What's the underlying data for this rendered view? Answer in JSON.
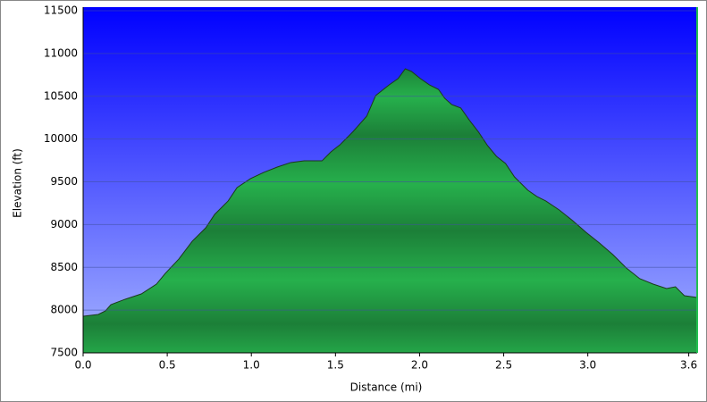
{
  "chart_data": {
    "type": "area",
    "x_label": "Distance    (mi)",
    "y_label": "Elevation (ft)",
    "x": [
      0,
      0.09,
      0.133,
      0.165,
      0.25,
      0.346,
      0.436,
      0.489,
      0.569,
      0.649,
      0.729,
      0.782,
      0.862,
      0.915,
      0.995,
      1.074,
      1.154,
      1.234,
      1.314,
      1.42,
      1.473,
      1.527,
      1.606,
      1.686,
      1.739,
      1.819,
      1.872,
      1.915,
      1.952,
      2.005,
      2.059,
      2.112,
      2.149,
      2.191,
      2.245,
      2.298,
      2.351,
      2.404,
      2.457,
      2.511,
      2.564,
      2.644,
      2.697,
      2.75,
      2.83,
      2.91,
      2.989,
      3.069,
      3.149,
      3.229,
      3.309,
      3.388,
      3.468,
      3.521,
      3.574,
      3.65
    ],
    "values": [
      7928,
      7949,
      7991,
      8064,
      8127,
      8189,
      8304,
      8430,
      8597,
      8806,
      8962,
      9119,
      9276,
      9432,
      9537,
      9610,
      9672,
      9725,
      9745,
      9745,
      9850,
      9933,
      10090,
      10268,
      10508,
      10633,
      10706,
      10821,
      10790,
      10706,
      10633,
      10581,
      10477,
      10403,
      10362,
      10215,
      10080,
      9923,
      9798,
      9714,
      9557,
      9401,
      9328,
      9276,
      9171,
      9046,
      8910,
      8785,
      8649,
      8492,
      8367,
      8304,
      8252,
      8273,
      8168,
      8148
    ],
    "color": "#22a84a",
    "xlim": [
      0,
      3.65
    ],
    "xticks": [
      {
        "value": 0,
        "label": "0.0"
      },
      0.5,
      {
        "value": 1,
        "label": "1.0"
      },
      1.5,
      {
        "value": 2,
        "label": "2.0"
      },
      2.5,
      {
        "value": 3,
        "label": "3.0"
      },
      3.6
    ],
    "ylim": [
      7500,
      11500
    ],
    "yticks": [
      7500,
      8000,
      8500,
      9000,
      9500,
      10000,
      10500,
      11000,
      11500
    ],
    "grid": true
  }
}
